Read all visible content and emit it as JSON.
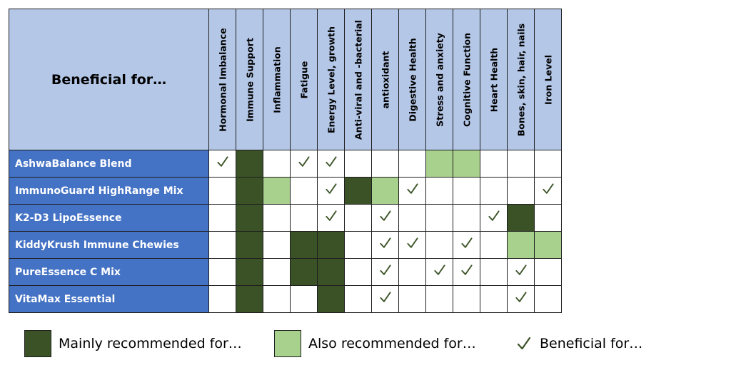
{
  "corner_label": "Beneficial for…",
  "columns": [
    "Hormonal Imbalance",
    "Immune  Support",
    "Inflammation",
    "Fatigue",
    "Energy Level, growth",
    "Anti-viral and -bacterial",
    "antioxidant",
    "Digestive Health",
    "Stress and anxiety",
    "Cognitive Function",
    "Heart Health",
    "Bones, skin, hair, nails",
    "Iron Level"
  ],
  "rows": [
    {
      "name": "AshwaBalance Blend",
      "cells": [
        "check",
        "main",
        "",
        "check",
        "check",
        "",
        "",
        "",
        "also",
        "also",
        "",
        "",
        ""
      ]
    },
    {
      "name": "ImmunoGuard HighRange Mix",
      "cells": [
        "",
        "main",
        "also",
        "",
        "check",
        "main",
        "also",
        "check",
        "",
        "",
        "",
        "",
        "check"
      ]
    },
    {
      "name": "K2-D3 LipoEssence",
      "cells": [
        "",
        "main",
        "",
        "",
        "check",
        "",
        "check",
        "",
        "",
        "",
        "check",
        "main",
        ""
      ]
    },
    {
      "name": "KiddyKrush Immune Chewies",
      "cells": [
        "",
        "main",
        "",
        "main",
        "main",
        "",
        "check",
        "check",
        "",
        "check",
        "",
        "also",
        "also"
      ]
    },
    {
      "name": "PureEssence C Mix",
      "cells": [
        "",
        "main",
        "",
        "main",
        "main",
        "",
        "check",
        "",
        "check",
        "check",
        "",
        "check",
        ""
      ]
    },
    {
      "name": "VitaMax Essential",
      "cells": [
        "",
        "main",
        "",
        "",
        "main",
        "",
        "check",
        "",
        "",
        "",
        "",
        "check",
        ""
      ]
    }
  ],
  "legend": {
    "main_label": "Mainly recommended for…",
    "also_label": "Also recommended for…",
    "check_label": "Beneficial for…"
  },
  "colors": {
    "header_bg": "#b4c7e7",
    "row_header_bg": "#4472c4",
    "main": "#3a5226",
    "also": "#a9d18e",
    "check": "#3a5226"
  },
  "icons": {
    "check": "checkmark-icon"
  }
}
